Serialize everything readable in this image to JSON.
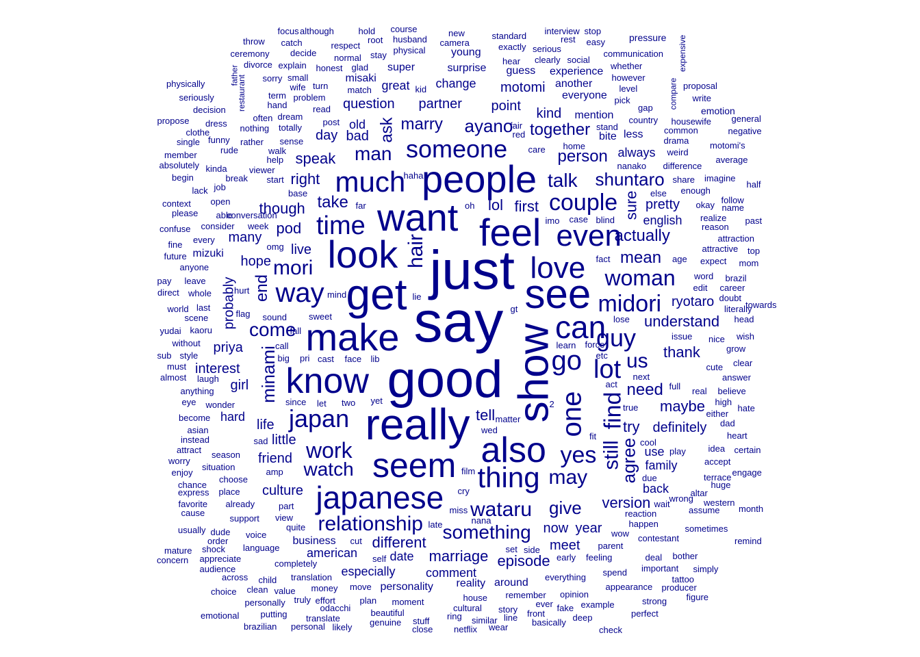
{
  "color": "#00008B",
  "words": [
    "say",
    "just",
    "good",
    "get",
    "really",
    "see",
    "show",
    "people",
    "make",
    "want",
    "feel",
    "know",
    "look",
    "also",
    "seem",
    "japanese",
    "can",
    "even",
    "love",
    "much",
    "thing",
    "one",
    "way",
    "time",
    "couple",
    "go",
    "someone",
    "guy",
    "midori",
    "find",
    "lot",
    "woman",
    "mori",
    "wataru",
    "yes",
    "japan",
    "relationship",
    "still",
    "may",
    "work",
    "something",
    "watch",
    "us",
    "come",
    "talk",
    "hair",
    "minami",
    "give",
    "agree",
    "shuntaro",
    "man",
    "together",
    "person",
    "actually",
    "end",
    "ayano",
    "mean",
    "marry",
    "ask",
    "understand",
    "thank",
    "sure",
    "different",
    "episode",
    "marriage",
    "take",
    "need",
    "interest",
    "lol",
    "hope",
    "maybe",
    "right",
    "speak",
    "first",
    "tell",
    "try",
    "pretty",
    "definitely",
    "probably",
    "version",
    "ryotaro",
    "year",
    "now",
    "pod",
    "though",
    "little",
    "friend",
    "culture",
    "motomi",
    "point",
    "kind",
    "bad",
    "question",
    "partner",
    "live",
    "priya",
    "girl",
    "hard",
    "life",
    "meet",
    "always",
    "english",
    "family",
    "day",
    "old",
    "many",
    "comment",
    "especially",
    "personality",
    "reality",
    "american",
    "business",
    "date",
    "mizuki",
    "around",
    "hope",
    "use",
    "back",
    "change",
    "great",
    "super",
    "misaki",
    "surprise",
    "young",
    "experience",
    "everyone",
    "mention",
    "bite",
    "less",
    "guess",
    "another",
    "pod"
  ],
  "small_words": [
    "focus",
    "although",
    "hold",
    "course",
    "new",
    "standard",
    "interview",
    "stop",
    "throw",
    "catch",
    "respect",
    "root",
    "husband",
    "camera",
    "rest",
    "easy",
    "pressure",
    "ceremony",
    "decide",
    "normal",
    "stay",
    "physical",
    "exactly",
    "serious",
    "communication",
    "divorce",
    "explain",
    "glad",
    "hear",
    "clearly",
    "social",
    "whether",
    "physically",
    "sorry",
    "small",
    "honest",
    "however",
    "seriously",
    "wife",
    "turn",
    "match",
    "kid",
    "level",
    "proposal",
    "term",
    "problem",
    "gap",
    "emotion",
    "decision",
    "hand",
    "read",
    "pick",
    "write",
    "propose",
    "dress",
    "often",
    "dream",
    "post",
    "country",
    "housewife",
    "general",
    "clothe",
    "nothing",
    "totally",
    "fair",
    "red",
    "stand",
    "common",
    "negative",
    "single",
    "funny",
    "rather",
    "sense",
    "care",
    "drama",
    "motomi's",
    "member",
    "rude",
    "walk",
    "help",
    "home",
    "weird",
    "average",
    "absolutely",
    "kinda",
    "break",
    "viewer",
    "haha",
    "nanako",
    "difference",
    "begin",
    "start",
    "else",
    "share",
    "imagine",
    "half",
    "lack",
    "job",
    "enough",
    "follow",
    "context",
    "open",
    "base",
    "far",
    "oh",
    "okay",
    "name",
    "please",
    "able",
    "conversation",
    "imo",
    "case",
    "blind",
    "realize",
    "past",
    "confuse",
    "consider",
    "week",
    "every",
    "reason",
    "fine",
    "omg",
    "attraction",
    "future",
    "anyone",
    "fact",
    "age",
    "expect",
    "top",
    "pay",
    "leave",
    "attractive",
    "mom",
    "direct",
    "whole",
    "hurt",
    "mind",
    "word",
    "brazil",
    "world",
    "last",
    "lie",
    "gt",
    "edit",
    "career",
    "towards",
    "scene",
    "flag",
    "sound",
    "sweet",
    "doubt",
    "literally",
    "yudai",
    "kaoru",
    "fall",
    "issue",
    "head",
    "without",
    "call",
    "lose",
    "nice",
    "wish",
    "sub",
    "style",
    "pri",
    "cast",
    "face",
    "lib",
    "learn",
    "force",
    "grow",
    "must",
    "big",
    "etc",
    "clear",
    "almost",
    "laugh",
    "next",
    "cute",
    "answer",
    "anything",
    "full",
    "real",
    "believe",
    "eye",
    "wonder",
    "since",
    "let",
    "two",
    "yet",
    "act",
    "high",
    "become",
    "either",
    "hate",
    "asian",
    "matter",
    "true",
    "dad",
    "instead",
    "wed",
    "heart",
    "attract",
    "sad",
    "fit",
    "cool",
    "idea",
    "certain",
    "worry",
    "season",
    "play",
    "enjoy",
    "amp",
    "situation",
    "accept",
    "chance",
    "choose",
    "film",
    "due",
    "terrace",
    "express",
    "place",
    "huge",
    "engage",
    "favorite",
    "already",
    "cry",
    "wrong",
    "altar",
    "cause",
    "part",
    "miss",
    "wait",
    "assume",
    "support",
    "view",
    "nana",
    "reaction",
    "western",
    "month",
    "usually",
    "dude",
    "quite",
    "late",
    "happen",
    "wow",
    "sometimes",
    "mature",
    "voice",
    "order",
    "contestant",
    "shock",
    "cut",
    "set",
    "side",
    "remind",
    "concern",
    "appreciate",
    "language",
    "self",
    "early",
    "feeling",
    "parent",
    "deal",
    "bother",
    "audience",
    "completely",
    "spend",
    "important",
    "simply",
    "across",
    "child",
    "translation",
    "everything",
    "tattoo",
    "choice",
    "clean",
    "value",
    "money",
    "move",
    "opinion",
    "appearance",
    "producer",
    "personally",
    "truly",
    "effort",
    "plan",
    "moment",
    "house",
    "remember",
    "figure",
    "emotional",
    "putting",
    "odacchi",
    "beautiful",
    "cultural",
    "story",
    "ever",
    "example",
    "strong",
    "brazilian",
    "personal",
    "likely",
    "translate",
    "genuine",
    "stuff",
    "ring",
    "similar",
    "front",
    "fake",
    "deep",
    "perfect",
    "close",
    "netflix",
    "wear",
    "line",
    "basically",
    "check",
    "expensive",
    "restaurant",
    "compare",
    "father",
    "2"
  ]
}
